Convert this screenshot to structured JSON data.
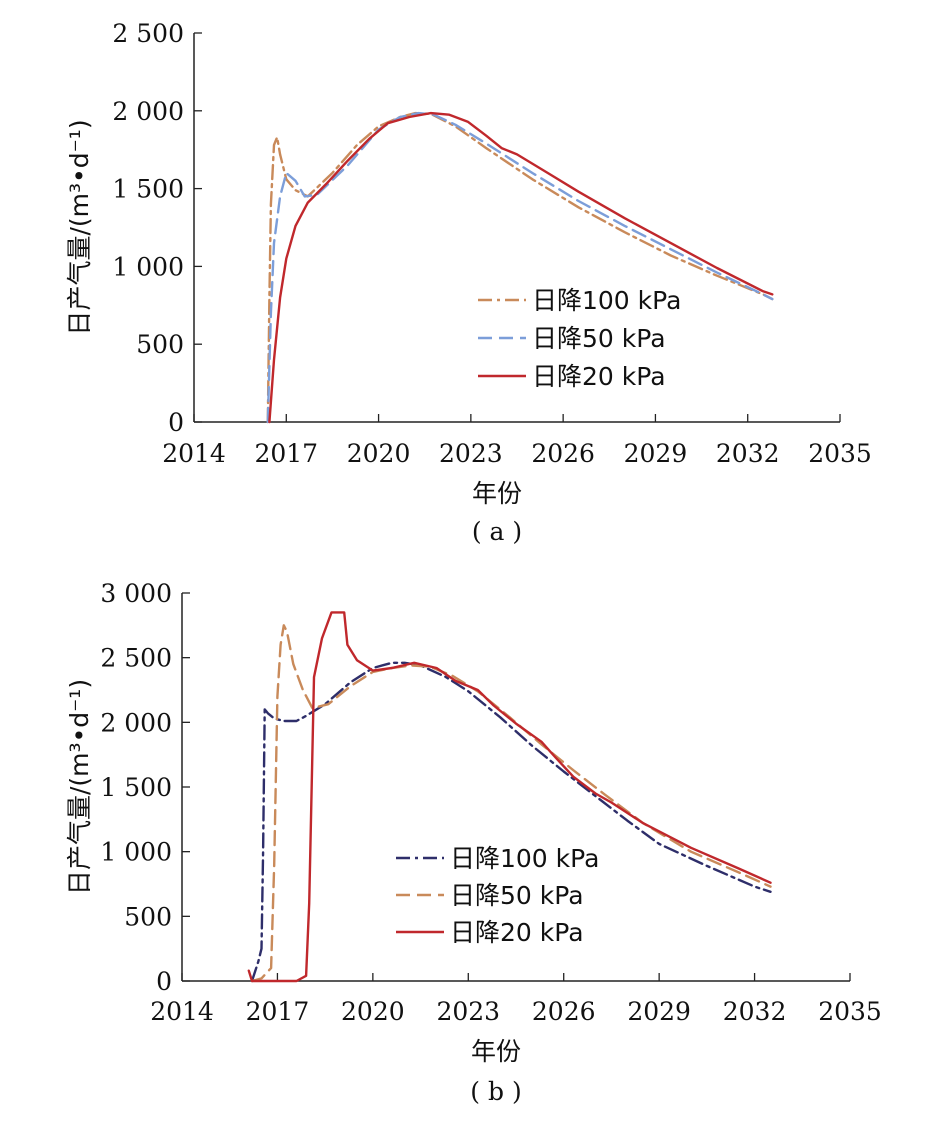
{
  "chart_data": [
    {
      "panel_label": "( a )",
      "type": "line",
      "xlabel": "年份",
      "ylabel": "日产气量/(m³•d⁻¹)",
      "xlim": [
        2014,
        2035
      ],
      "ylim": [
        0,
        2500
      ],
      "xticks": [
        2014,
        2017,
        2020,
        2023,
        2026,
        2029,
        2032,
        2035
      ],
      "xtick_labels": [
        "2014",
        "2017",
        "2020",
        "2023",
        "2026",
        "2029",
        "2032",
        "2035"
      ],
      "yticks": [
        0,
        500,
        1000,
        1500,
        2000,
        2500
      ],
      "ytick_labels": [
        "0",
        "500",
        "1 000",
        "1 500",
        "2 000",
        "2 500"
      ],
      "legend_position": "center-right",
      "series": [
        {
          "name": "日降100 kPa",
          "color": "#c98a5a",
          "dash": "dashdot",
          "x": [
            2016.4,
            2016.45,
            2016.5,
            2016.6,
            2016.7,
            2016.8,
            2017.0,
            2017.3,
            2017.7,
            2018.5,
            2019.3,
            2020.0,
            2020.7,
            2021.2,
            2021.7,
            2022.5,
            2023.5,
            2025.0,
            2026.5,
            2028.0,
            2029.5,
            2031.0,
            2032.5,
            2032.8
          ],
          "y": [
            0,
            800,
            1400,
            1780,
            1830,
            1720,
            1560,
            1490,
            1450,
            1600,
            1780,
            1900,
            1960,
            1985,
            1980,
            1900,
            1760,
            1560,
            1380,
            1220,
            1070,
            940,
            820,
            790
          ]
        },
        {
          "name": "日降50 kPa",
          "color": "#7c9ed9",
          "dash": "dashed",
          "x": [
            2016.4,
            2016.5,
            2016.6,
            2016.8,
            2017.0,
            2017.3,
            2017.6,
            2018.0,
            2019.0,
            2020.0,
            2020.7,
            2021.3,
            2021.8,
            2022.5,
            2023.5,
            2025.0,
            2026.5,
            2028.0,
            2029.5,
            2031.0,
            2032.5,
            2032.8
          ],
          "y": [
            0,
            700,
            1150,
            1450,
            1600,
            1550,
            1450,
            1460,
            1650,
            1880,
            1960,
            1985,
            1975,
            1910,
            1790,
            1600,
            1420,
            1260,
            1110,
            960,
            820,
            790
          ]
        },
        {
          "name": "日降20 kPa",
          "color": "#c0282c",
          "dash": "solid",
          "x": [
            2016.45,
            2016.6,
            2016.8,
            2017.0,
            2017.3,
            2017.7,
            2018.3,
            2019.0,
            2019.7,
            2020.3,
            2021.0,
            2021.7,
            2022.3,
            2022.9,
            2023.5,
            2024.0,
            2024.5,
            2025.5,
            2026.5,
            2028.0,
            2029.5,
            2031.0,
            2032.5,
            2032.8
          ],
          "y": [
            0,
            400,
            800,
            1050,
            1260,
            1410,
            1530,
            1680,
            1820,
            1920,
            1960,
            1985,
            1975,
            1930,
            1840,
            1760,
            1720,
            1600,
            1480,
            1310,
            1150,
            990,
            840,
            820
          ]
        }
      ]
    },
    {
      "panel_label": "( b )",
      "type": "line",
      "xlabel": "年份",
      "ylabel": "日产气量/(m³•d⁻¹)",
      "xlim": [
        2014,
        2035
      ],
      "ylim": [
        0,
        3000
      ],
      "xticks": [
        2014,
        2017,
        2020,
        2023,
        2026,
        2029,
        2032,
        2035
      ],
      "xtick_labels": [
        "2014",
        "2017",
        "2020",
        "2023",
        "2026",
        "2029",
        "2032",
        "2035"
      ],
      "yticks": [
        0,
        500,
        1000,
        1500,
        2000,
        2500,
        3000
      ],
      "ytick_labels": [
        "0",
        "500",
        "1 000",
        "1 500",
        "2 000",
        "2 500",
        "3 000"
      ],
      "legend_position": "center-right",
      "series": [
        {
          "name": "日降100 kPa",
          "color": "#2e2e6a",
          "dash": "dashdot",
          "x": [
            2016.2,
            2016.4,
            2016.5,
            2016.55,
            2016.6,
            2016.7,
            2016.9,
            2017.2,
            2017.6,
            2017.9,
            2018.5,
            2019.3,
            2020.0,
            2020.6,
            2021.0,
            2021.5,
            2022.3,
            2023.0,
            2024.0,
            2025.0,
            2026.0,
            2027.0,
            2028.0,
            2029.0,
            2030.5,
            2032.0,
            2032.5
          ],
          "y": [
            0,
            150,
            250,
            1000,
            2100,
            2070,
            2030,
            2010,
            2010,
            2050,
            2140,
            2310,
            2420,
            2460,
            2460,
            2440,
            2350,
            2240,
            2040,
            1820,
            1620,
            1430,
            1240,
            1060,
            890,
            730,
            690
          ]
        },
        {
          "name": "日降50 kPa",
          "color": "#c98a5a",
          "dash": "dashed",
          "x": [
            2016.2,
            2016.5,
            2016.8,
            2016.9,
            2017.0,
            2017.1,
            2017.2,
            2017.3,
            2017.5,
            2017.8,
            2018.1,
            2018.6,
            2019.3,
            2020.0,
            2020.6,
            2021.2,
            2021.8,
            2022.5,
            2023.3,
            2024.3,
            2025.3,
            2026.3,
            2027.3,
            2028.5,
            2030.0,
            2031.5,
            2032.5
          ],
          "y": [
            0,
            20,
            100,
            900,
            2200,
            2600,
            2750,
            2700,
            2450,
            2250,
            2110,
            2140,
            2280,
            2390,
            2420,
            2440,
            2430,
            2360,
            2240,
            2040,
            1830,
            1630,
            1440,
            1220,
            1000,
            840,
            730
          ]
        },
        {
          "name": "日降20 kPa",
          "color": "#c0282c",
          "dash": "solid",
          "x": [
            2016.1,
            2016.2,
            2016.6,
            2017.0,
            2017.6,
            2017.9,
            2018.0,
            2018.15,
            2018.4,
            2018.7,
            2018.9,
            2019.1,
            2019.2,
            2019.5,
            2020.0,
            2020.6,
            2021.3,
            2022.0,
            2022.6,
            2023.3,
            2023.8,
            2024.5,
            2025.3,
            2025.7,
            2026.3,
            2027.0,
            2027.5,
            2028.5,
            2030.0,
            2031.5,
            2032.5
          ],
          "y": [
            80,
            0,
            0,
            0,
            0,
            40,
            600,
            2350,
            2650,
            2850,
            2850,
            2850,
            2600,
            2480,
            2400,
            2420,
            2460,
            2420,
            2320,
            2250,
            2130,
            1990,
            1850,
            1740,
            1580,
            1450,
            1380,
            1220,
            1030,
            870,
            760
          ]
        }
      ]
    }
  ]
}
